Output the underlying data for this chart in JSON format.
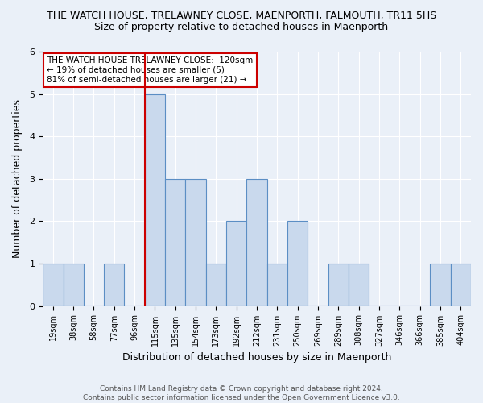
{
  "title": "THE WATCH HOUSE, TRELAWNEY CLOSE, MAENPORTH, FALMOUTH, TR11 5HS",
  "subtitle": "Size of property relative to detached houses in Maenporth",
  "xlabel": "Distribution of detached houses by size in Maenporth",
  "ylabel": "Number of detached properties",
  "categories": [
    "19sqm",
    "38sqm",
    "58sqm",
    "77sqm",
    "96sqm",
    "115sqm",
    "135sqm",
    "154sqm",
    "173sqm",
    "192sqm",
    "212sqm",
    "231sqm",
    "250sqm",
    "269sqm",
    "289sqm",
    "308sqm",
    "327sqm",
    "346sqm",
    "366sqm",
    "385sqm",
    "404sqm"
  ],
  "values": [
    1,
    1,
    0,
    1,
    0,
    5,
    3,
    3,
    1,
    2,
    3,
    1,
    2,
    0,
    1,
    1,
    0,
    0,
    0,
    1,
    1
  ],
  "highlight_index": 5,
  "bar_color": "#c9d9ed",
  "bar_edge_color": "#5b8ec4",
  "highlight_line_color": "#cc0000",
  "ylim": [
    0,
    6
  ],
  "yticks": [
    0,
    1,
    2,
    3,
    4,
    5,
    6
  ],
  "annotation_text": "THE WATCH HOUSE TRELAWNEY CLOSE:  120sqm\n← 19% of detached houses are smaller (5)\n81% of semi-detached houses are larger (21) →",
  "annotation_box_color": "#ffffff",
  "annotation_box_edge": "#cc0000",
  "footer_text": "Contains HM Land Registry data © Crown copyright and database right 2024.\nContains public sector information licensed under the Open Government Licence v3.0.",
  "bg_color": "#eaf0f8",
  "plot_bg_color": "#eaf0f8",
  "title_fontsize": 9,
  "subtitle_fontsize": 9,
  "annotation_fontsize": 7.5,
  "footer_fontsize": 6.5,
  "xlabel_fontsize": 9,
  "ylabel_fontsize": 9
}
